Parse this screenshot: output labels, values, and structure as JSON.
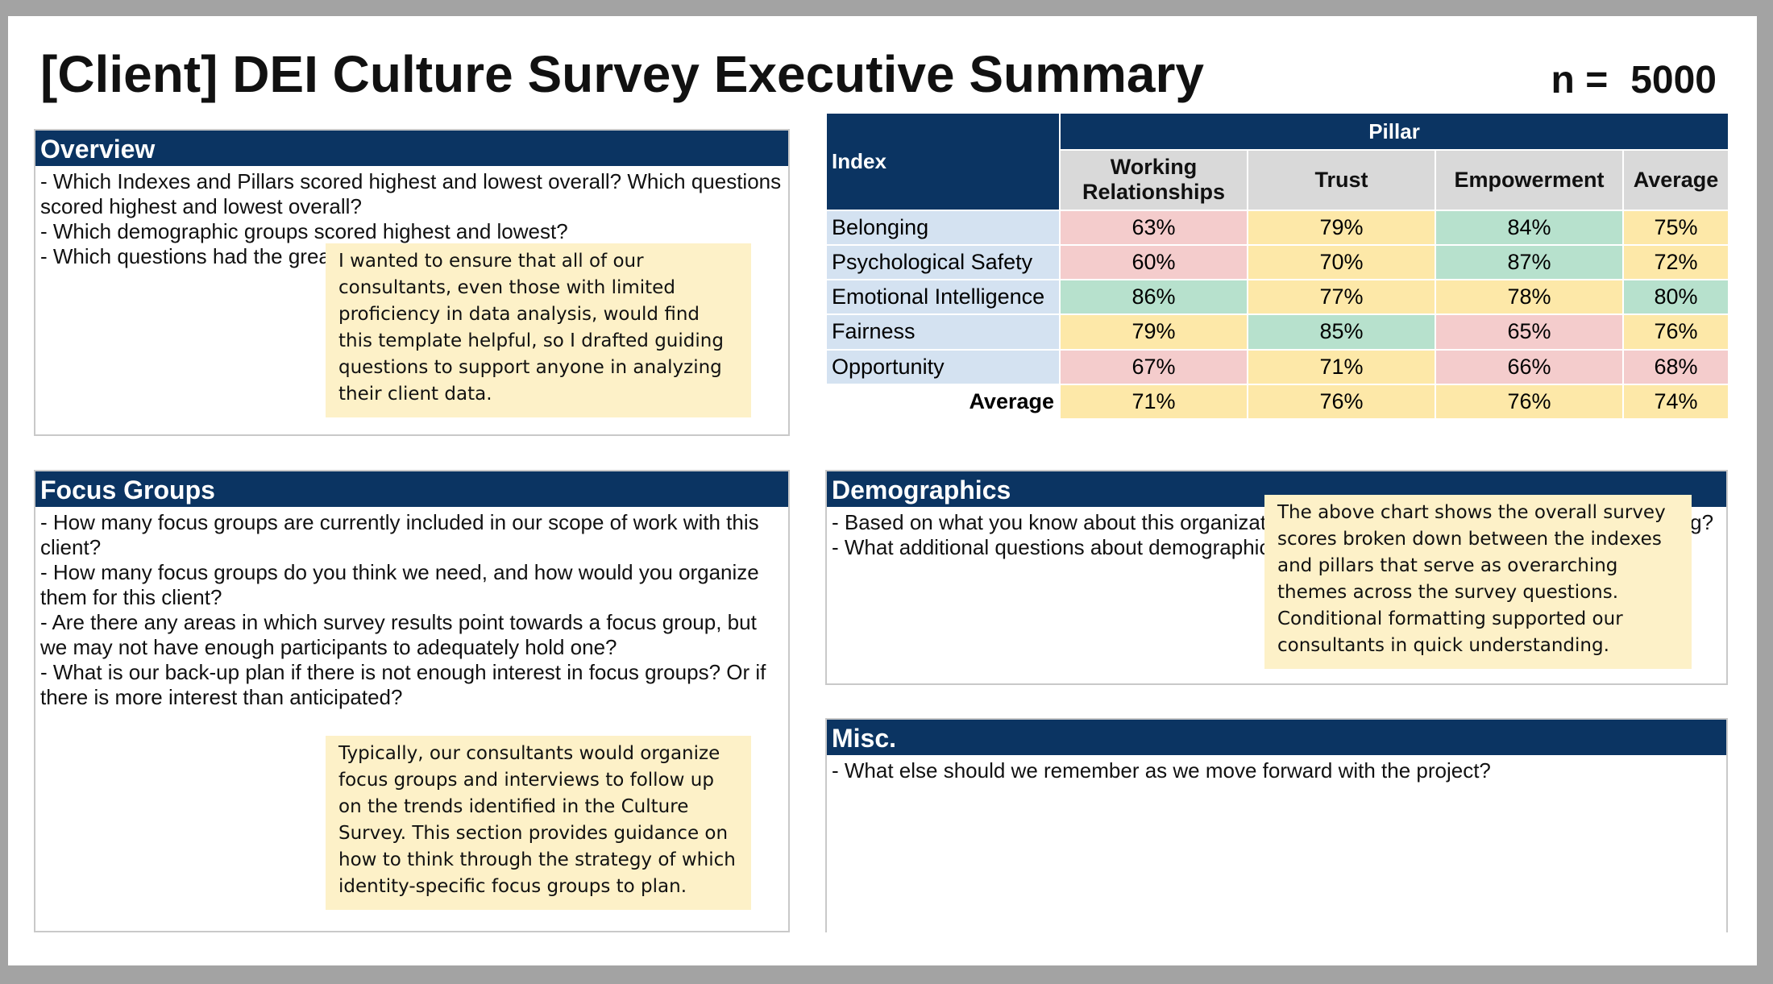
{
  "title": "[Client] DEI Culture Survey Executive Summary",
  "n_label": "n =",
  "n_value": "5000",
  "colors": {
    "header": "#0b3462",
    "note": "#fdf1c8",
    "red": "#f4cccc",
    "yellow": "#fde8a8",
    "green": "#b7e1cd"
  },
  "overview": {
    "heading": "Overview",
    "lines": [
      "- Which Indexes and Pillars scored highest and lowest overall? Which questions scored highest and lowest overall?",
      "- Which demographic groups scored highest and lowest?",
      "- Which questions had the greatest"
    ],
    "note": "I wanted to ensure that all of our consultants, even those with limited proficiency in data analysis, would find this template helpful, so I drafted guiding questions to support anyone in analyzing their client data."
  },
  "table": {
    "index_header": "Index",
    "pillar_header": "Pillar",
    "columns": [
      "Working Relationships",
      "Trust",
      "Empowerment",
      "Average"
    ],
    "rows": [
      {
        "label": "Belonging",
        "values": [
          "63%",
          "79%",
          "84%",
          "75%"
        ],
        "colors": [
          "red",
          "yel",
          "grn",
          "yel"
        ]
      },
      {
        "label": "Psychological Safety",
        "values": [
          "60%",
          "70%",
          "87%",
          "72%"
        ],
        "colors": [
          "red",
          "yel",
          "grn",
          "yel"
        ]
      },
      {
        "label": "Emotional Intelligence",
        "values": [
          "86%",
          "77%",
          "78%",
          "80%"
        ],
        "colors": [
          "grn",
          "yel",
          "yel",
          "grn"
        ]
      },
      {
        "label": "Fairness",
        "values": [
          "79%",
          "85%",
          "65%",
          "76%"
        ],
        "colors": [
          "yel",
          "grn",
          "red",
          "yel"
        ]
      },
      {
        "label": "Opportunity",
        "values": [
          "67%",
          "71%",
          "66%",
          "68%"
        ],
        "colors": [
          "red",
          "yel",
          "red",
          "red"
        ]
      }
    ],
    "average_row": {
      "label": "Average",
      "values": [
        "71%",
        "76%",
        "76%",
        "74%"
      ],
      "colors": [
        "yel",
        "yel",
        "yel",
        "yel"
      ]
    }
  },
  "focus_groups": {
    "heading": "Focus Groups",
    "lines": [
      "- How many focus groups are currently included in our scope of work with this client?",
      "- How many focus groups do you think we need, and how would you organize them for this client?",
      "- Are there any areas in which survey results point towards a focus group, but we may not have enough participants to adequately hold one?",
      "- What is our back-up plan if there is not enough interest in focus groups? Or if there is more interest than anticipated?"
    ],
    "note": "Typically, our consultants would organize focus groups and interviews to follow up on the trends identified in the Culture Survey. This section provides guidance on how to think through the strategy of which identity-specific focus groups to plan."
  },
  "demographics": {
    "heading": "Demographics",
    "lines": [
      "- Based on what you know about this organization, which demographic groups are we missing?",
      "- What additional questions about demographics"
    ],
    "note": "The above chart shows the overall survey scores broken down between the indexes and pillars that serve as overarching themes across the survey questions. Conditional formatting supported our consultants in quick understanding."
  },
  "misc": {
    "heading": "Misc.",
    "lines": [
      "- What else should we remember as we move forward with the project?"
    ]
  }
}
